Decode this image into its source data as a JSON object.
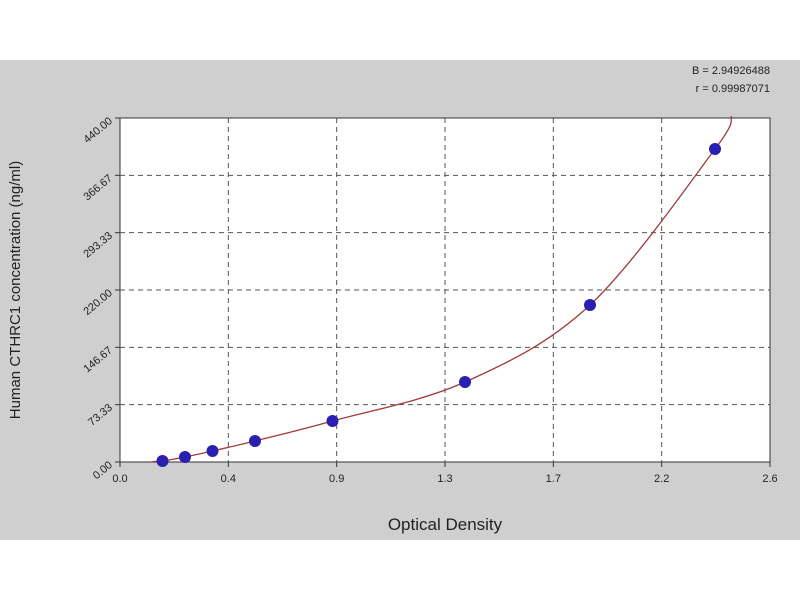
{
  "chart_data": {
    "type": "scatter",
    "x_label": "Optical Density",
    "y_label": "Human CTHRC1 concentration (ng/ml)",
    "annotations": [
      "B = 2.94926488",
      "r = 0.99987071"
    ],
    "series": [
      {
        "color": "#2a1fb0",
        "fit_color": "#a33a3a",
        "x": [
          0.17,
          0.26,
          0.37,
          0.54,
          0.85,
          1.38,
          1.88,
          2.38
        ],
        "values": [
          1.3,
          6.4,
          14.1,
          26.9,
          52.4,
          102.3,
          200.8,
          400.3
        ]
      }
    ],
    "xlim": [
      0,
      2.6
    ],
    "ylim": [
      0,
      440
    ],
    "xticks": [
      {
        "value": 0,
        "label": "0.0"
      },
      {
        "value": 0.4333,
        "label": "0.4"
      },
      {
        "value": 0.8667,
        "label": "0.9"
      },
      {
        "value": 1.3,
        "label": "1.3"
      },
      {
        "value": 1.7333,
        "label": "1.7"
      },
      {
        "value": 2.1667,
        "label": "2.2"
      },
      {
        "value": 2.6,
        "label": "2.6"
      }
    ],
    "yticks": [
      {
        "value": 0,
        "label": "0.00"
      },
      {
        "value": 73.33,
        "label": "73.33"
      },
      {
        "value": 146.67,
        "label": "146.67"
      },
      {
        "value": 220,
        "label": "220.00"
      },
      {
        "value": 293.33,
        "label": "293.33"
      },
      {
        "value": 366.67,
        "label": "366.67"
      },
      {
        "value": 440,
        "label": "440.00"
      }
    ],
    "grid": true
  }
}
